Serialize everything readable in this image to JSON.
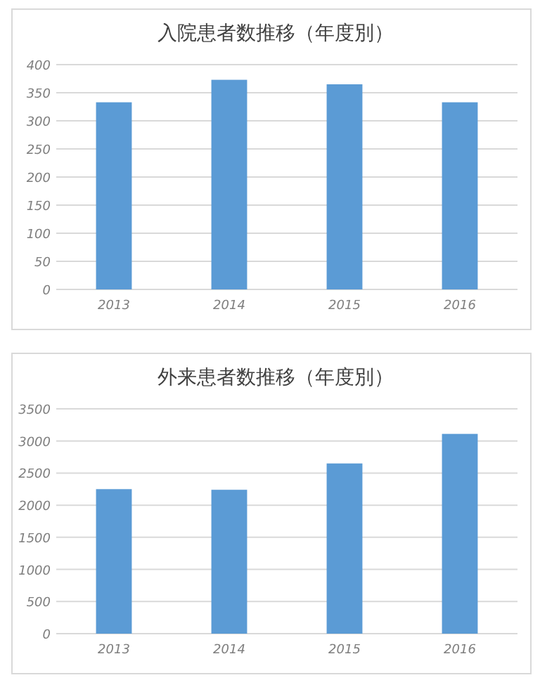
{
  "chart_data": [
    {
      "type": "bar",
      "title": "入院患者数推移（年度別）",
      "categories": [
        "2013",
        "2014",
        "2015",
        "2016"
      ],
      "values": [
        333,
        373,
        365,
        333
      ],
      "color": "#5b9bd5",
      "ylim": [
        0,
        400
      ],
      "yticks": [
        0,
        50,
        100,
        150,
        200,
        250,
        300,
        350,
        400
      ],
      "grid": "y"
    },
    {
      "type": "bar",
      "title": "外来患者数推移（年度別）",
      "categories": [
        "2013",
        "2014",
        "2015",
        "2016"
      ],
      "values": [
        2250,
        2240,
        2650,
        3110
      ],
      "color": "#5b9bd5",
      "ylim": [
        0,
        3500
      ],
      "yticks": [
        0,
        500,
        1000,
        1500,
        2000,
        2500,
        3000,
        3500
      ],
      "grid": "y"
    }
  ]
}
